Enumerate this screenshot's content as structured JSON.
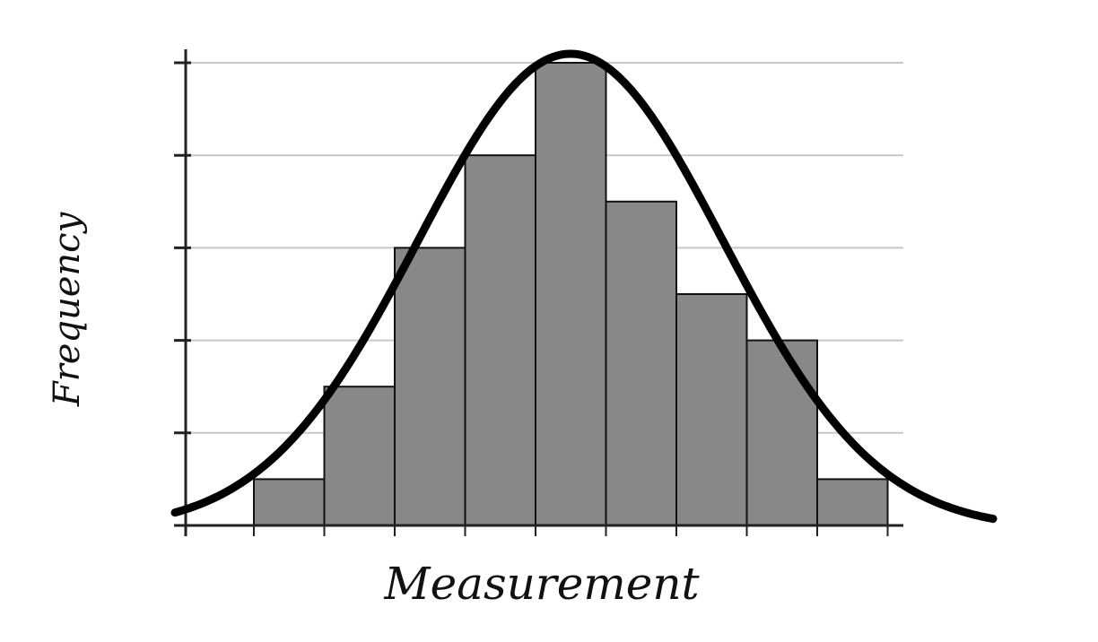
{
  "chart_data": {
    "type": "bar",
    "title": "",
    "xlabel": "Measurement",
    "ylabel": "Frequency",
    "bins": 9,
    "values": [
      0.5,
      1.5,
      3.0,
      4.0,
      5.0,
      3.5,
      2.5,
      2.0,
      0.5
    ],
    "ylim": [
      0,
      5
    ],
    "yticks": [
      0,
      1,
      2,
      3,
      4,
      5
    ],
    "grid": true,
    "overlay_curve": "normal",
    "colors": {
      "bar_fill": "#888888",
      "bar_edge": "#111111",
      "grid": "#c8c8c8",
      "axis": "#222222",
      "curve": "#000000"
    }
  }
}
